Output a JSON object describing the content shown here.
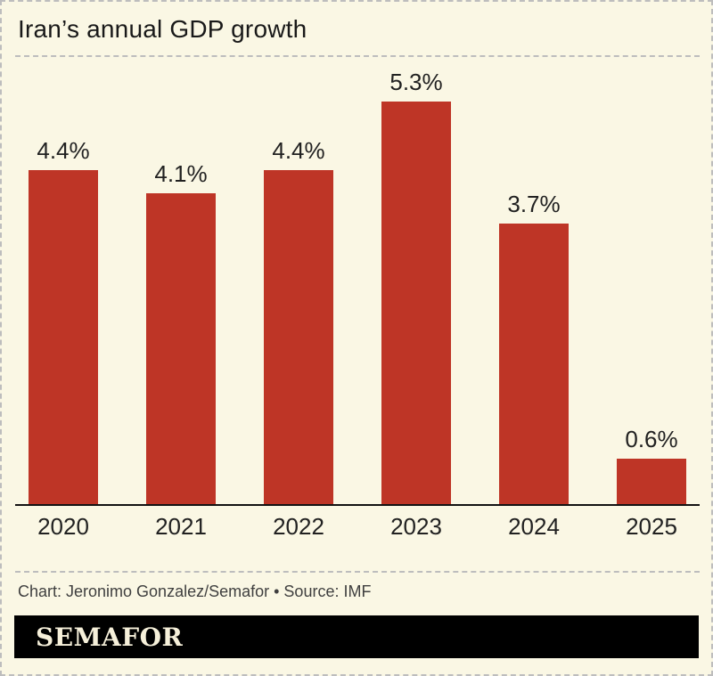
{
  "page": {
    "title": "Iran’s annual GDP growth",
    "credit": "Chart: Jeronimo Gonzalez/Semafor • Source: IMF",
    "brand": "SEMAFOR"
  },
  "colors": {
    "background": "#FAF7E4",
    "bar": "#BE3526",
    "axis": "#121212",
    "label_text": "#212121",
    "credit_text": "#3F3F3F",
    "dashed_line": "#BDBDBD",
    "brand_bar_bg": "#000000",
    "brand_text": "#F6F0DA"
  },
  "chart_data": {
    "type": "bar",
    "title": "Iran’s annual GDP growth",
    "categories": [
      "2020",
      "2021",
      "2022",
      "2023",
      "2024",
      "2025"
    ],
    "values": [
      4.4,
      4.1,
      4.4,
      5.3,
      3.7,
      0.6
    ],
    "value_labels": [
      "4.4%",
      "4.1%",
      "4.4%",
      "5.3%",
      "3.7%",
      "0.6%"
    ],
    "unit": "%",
    "xlabel": "",
    "ylabel": "",
    "ylim": [
      0,
      5.5
    ],
    "grid": false,
    "legend": "none",
    "value_labels_position": "above-bars",
    "baseline_axis": "x"
  }
}
